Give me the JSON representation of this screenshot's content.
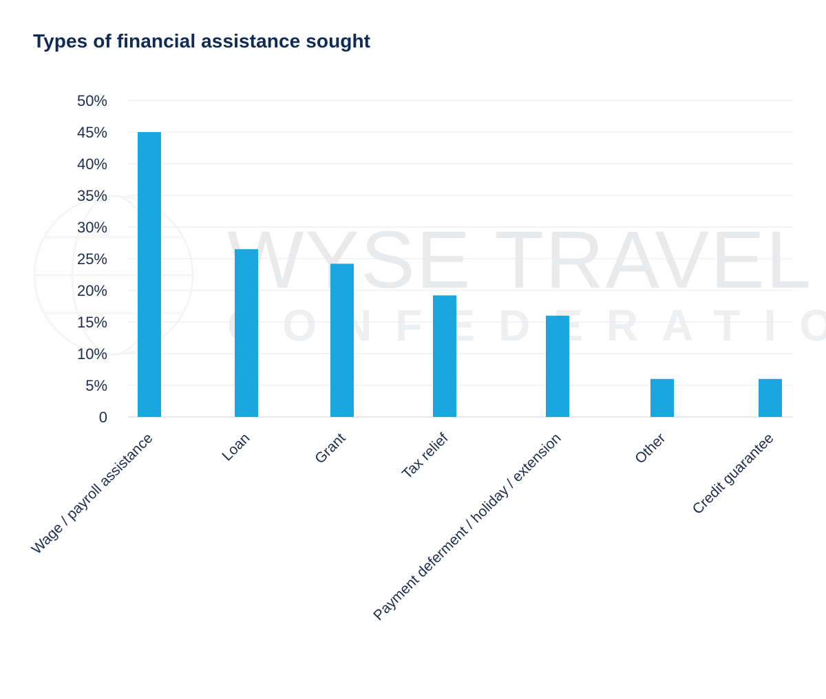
{
  "title": "Types of financial assistance sought",
  "watermark": {
    "line1": "WYSE TRAVEL",
    "line2": "CONFEDERATION"
  },
  "colors": {
    "bar": "#1aa7df",
    "text": "#1c2d4f",
    "grid": "#e7e9ee",
    "title": "#0f2a55"
  },
  "chart_data": {
    "type": "bar",
    "title": "Types of financial assistance sought",
    "xlabel": "",
    "ylabel": "",
    "categories": [
      "Wage / payroll assistance",
      "Loan",
      "Grant",
      "Tax relief",
      "Payment deferment / holiday / extension",
      "Other",
      "Credit guarantee"
    ],
    "values": [
      45,
      26.5,
      24.2,
      19.2,
      16,
      6,
      6
    ],
    "ylim": [
      0,
      50
    ],
    "yticks": [
      "0",
      "5%",
      "10%",
      "15%",
      "20%",
      "25%",
      "30%",
      "35%",
      "40%",
      "45%",
      "50%"
    ],
    "grid": true,
    "legend": "none"
  }
}
